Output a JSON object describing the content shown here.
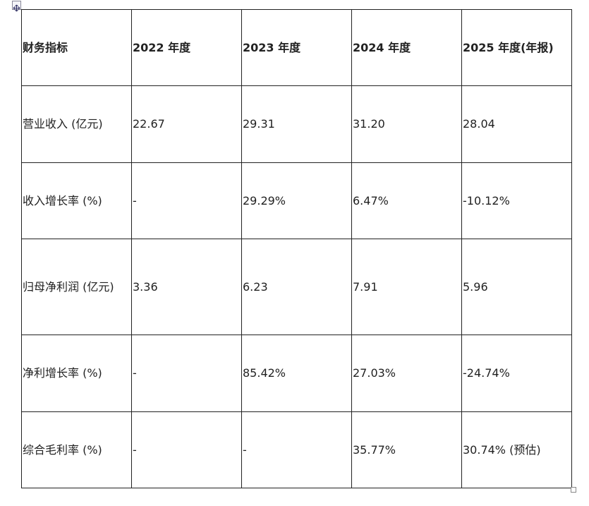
{
  "table": {
    "header": [
      "财务指标",
      "2022 年度",
      "2023 年度",
      "2024 年度",
      "2025 年度(年报)"
    ],
    "rows": [
      [
        "营业收入 (亿元)",
        "22.67",
        "29.31",
        "31.20",
        "28.04"
      ],
      [
        "收入增长率 (%)",
        "-",
        "29.29%",
        "6.47%",
        "-10.12%"
      ],
      [
        "归母净利润 (亿元)",
        "3.36",
        "6.23",
        "7.91",
        "5.96"
      ],
      [
        "净利增长率 (%)",
        "-",
        "85.42%",
        "27.03%",
        "-24.74%"
      ],
      [
        "综合毛利率 (%)",
        "-",
        "-",
        "35.77%",
        "30.74% (预估)"
      ]
    ]
  }
}
